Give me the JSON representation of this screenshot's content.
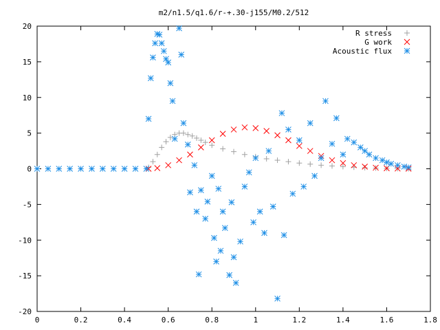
{
  "chart_data": {
    "type": "scatter",
    "title": "m2/n1.5/q1.6/r-+.30-j155/M0.2/512",
    "xlabel": "",
    "ylabel": "",
    "xlim": [
      0,
      1.8
    ],
    "ylim": [
      -20,
      20
    ],
    "xticks": [
      "0",
      "0.2",
      "0.4",
      "0.6",
      "0.8",
      "1",
      "1.2",
      "1.4",
      "1.6",
      "1.8"
    ],
    "yticks": [
      "20",
      "15",
      "10",
      "5",
      "0",
      "-5",
      "-10",
      "-15",
      "-20"
    ],
    "grid": false,
    "legend_position": "top-right",
    "series": [
      {
        "name": "R stress",
        "marker": "+",
        "color": "#a0a0a0",
        "x": [
          0.51,
          0.53,
          0.55,
          0.57,
          0.59,
          0.61,
          0.63,
          0.65,
          0.67,
          0.69,
          0.71,
          0.73,
          0.75,
          0.77,
          0.8,
          0.85,
          0.9,
          0.95,
          1.0,
          1.05,
          1.1,
          1.15,
          1.2,
          1.25,
          1.3,
          1.35,
          1.4,
          1.45,
          1.5,
          1.55,
          1.6,
          1.65,
          1.7
        ],
        "y": [
          0.2,
          1.0,
          2.0,
          3.0,
          3.8,
          4.4,
          4.8,
          5.0,
          5.0,
          4.8,
          4.6,
          4.3,
          4.0,
          3.7,
          3.3,
          2.8,
          2.4,
          2.0,
          1.7,
          1.4,
          1.2,
          1.0,
          0.8,
          0.65,
          0.5,
          0.4,
          0.3,
          0.22,
          0.15,
          0.1,
          0.06,
          0.03,
          0.01
        ]
      },
      {
        "name": "G work",
        "marker": "x",
        "color": "#ff0000",
        "x": [
          0.51,
          0.55,
          0.6,
          0.65,
          0.7,
          0.75,
          0.8,
          0.85,
          0.9,
          0.95,
          1.0,
          1.05,
          1.1,
          1.15,
          1.2,
          1.25,
          1.3,
          1.35,
          1.4,
          1.45,
          1.5,
          1.55,
          1.6,
          1.65,
          1.7
        ],
        "y": [
          0.0,
          0.1,
          0.5,
          1.2,
          2.0,
          3.0,
          4.0,
          4.9,
          5.5,
          5.8,
          5.7,
          5.3,
          4.7,
          4.0,
          3.2,
          2.5,
          1.8,
          1.2,
          0.8,
          0.5,
          0.3,
          0.15,
          0.07,
          0.03,
          0.01
        ]
      },
      {
        "name": "Acoustic flux",
        "marker": "*",
        "color": "#1f8fe6",
        "x": [
          0.0,
          0.05,
          0.1,
          0.15,
          0.2,
          0.25,
          0.3,
          0.35,
          0.4,
          0.45,
          0.5,
          0.51,
          0.52,
          0.53,
          0.54,
          0.55,
          0.56,
          0.57,
          0.58,
          0.59,
          0.6,
          0.61,
          0.62,
          0.63,
          0.65,
          0.66,
          0.67,
          0.69,
          0.7,
          0.72,
          0.73,
          0.74,
          0.75,
          0.77,
          0.78,
          0.8,
          0.81,
          0.82,
          0.83,
          0.84,
          0.85,
          0.86,
          0.88,
          0.89,
          0.9,
          0.91,
          0.93,
          0.95,
          0.97,
          0.99,
          1.0,
          1.02,
          1.04,
          1.06,
          1.08,
          1.1,
          1.12,
          1.13,
          1.15,
          1.17,
          1.2,
          1.22,
          1.25,
          1.27,
          1.3,
          1.32,
          1.35,
          1.37,
          1.4,
          1.42,
          1.45,
          1.48,
          1.5,
          1.52,
          1.55,
          1.58,
          1.6,
          1.62,
          1.65,
          1.68,
          1.7
        ],
        "y": [
          0,
          0,
          0,
          0,
          0,
          0,
          0,
          0,
          0,
          0,
          0,
          7.0,
          12.7,
          15.6,
          17.6,
          18.9,
          18.8,
          17.6,
          16.5,
          15.4,
          14.9,
          12.0,
          9.5,
          4.2,
          19.7,
          16.0,
          6.4,
          3.4,
          -3.3,
          0.5,
          -6.0,
          -14.8,
          -3.0,
          -7.0,
          -4.6,
          -1.0,
          -9.7,
          -13.0,
          -2.8,
          -11.5,
          -6.0,
          -8.3,
          -14.9,
          -4.7,
          -12.4,
          -16.0,
          -10.2,
          -2.5,
          -0.5,
          -7.5,
          1.5,
          -6.0,
          -9.0,
          2.5,
          -5.3,
          -18.2,
          7.8,
          -9.3,
          5.5,
          -3.5,
          4.0,
          -2.5,
          6.4,
          -1.0,
          1.5,
          9.5,
          3.5,
          7.1,
          2.0,
          4.2,
          3.7,
          3.0,
          2.5,
          2.0,
          1.5,
          1.2,
          0.9,
          0.7,
          0.5,
          0.3,
          0.2
        ]
      }
    ]
  }
}
